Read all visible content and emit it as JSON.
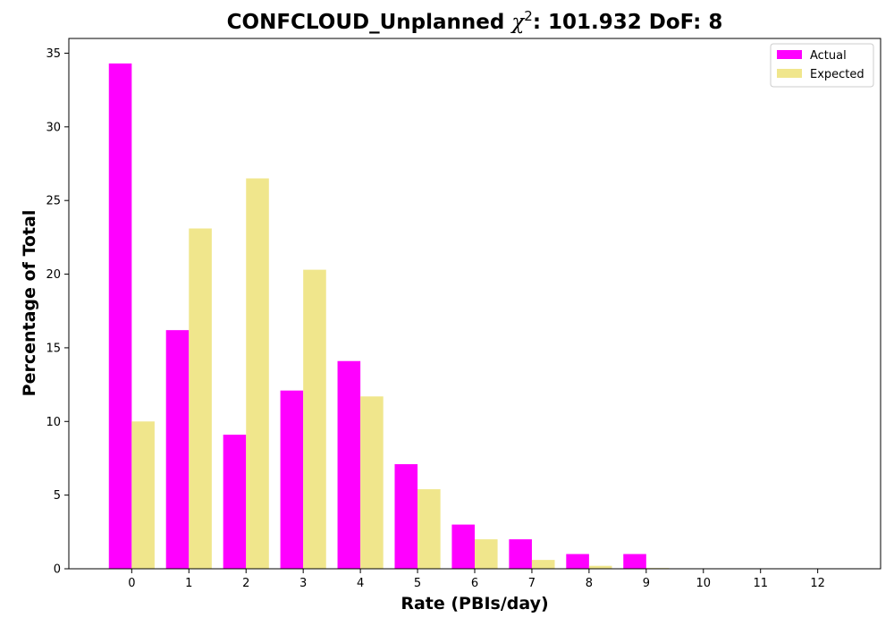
{
  "chart_data": {
    "type": "bar",
    "title": {
      "prefix": "CONFCLOUD_Unplanned ",
      "chi_symbol": "χ",
      "chi_exponent": "2",
      "suffix": ": 101.932 DoF: 8"
    },
    "xlabel": "Rate (PBIs/day)",
    "ylabel": "Percentage of Total",
    "categories": [
      "0",
      "1",
      "2",
      "3",
      "4",
      "5",
      "6",
      "7",
      "8",
      "9",
      "10",
      "11",
      "12"
    ],
    "x": [
      0,
      1,
      2,
      3,
      4,
      5,
      6,
      7,
      8,
      9,
      10,
      11,
      12
    ],
    "xlim": [
      -1.1,
      13.1
    ],
    "ylim": [
      0,
      36
    ],
    "yticks": [
      0,
      5,
      10,
      15,
      20,
      25,
      30,
      35
    ],
    "grid": false,
    "legend_position": "top-right",
    "series": [
      {
        "name": "Actual",
        "color": "#ff00ff",
        "values": [
          34.3,
          16.2,
          9.1,
          12.1,
          14.1,
          7.1,
          3.0,
          2.0,
          1.0,
          1.0,
          0,
          0,
          0
        ]
      },
      {
        "name": "Expected",
        "color": "#f0e68c",
        "values": [
          10.0,
          23.1,
          26.5,
          20.3,
          11.7,
          5.4,
          2.0,
          0.6,
          0.2,
          0.05,
          0.01,
          0,
          0
        ]
      }
    ]
  }
}
